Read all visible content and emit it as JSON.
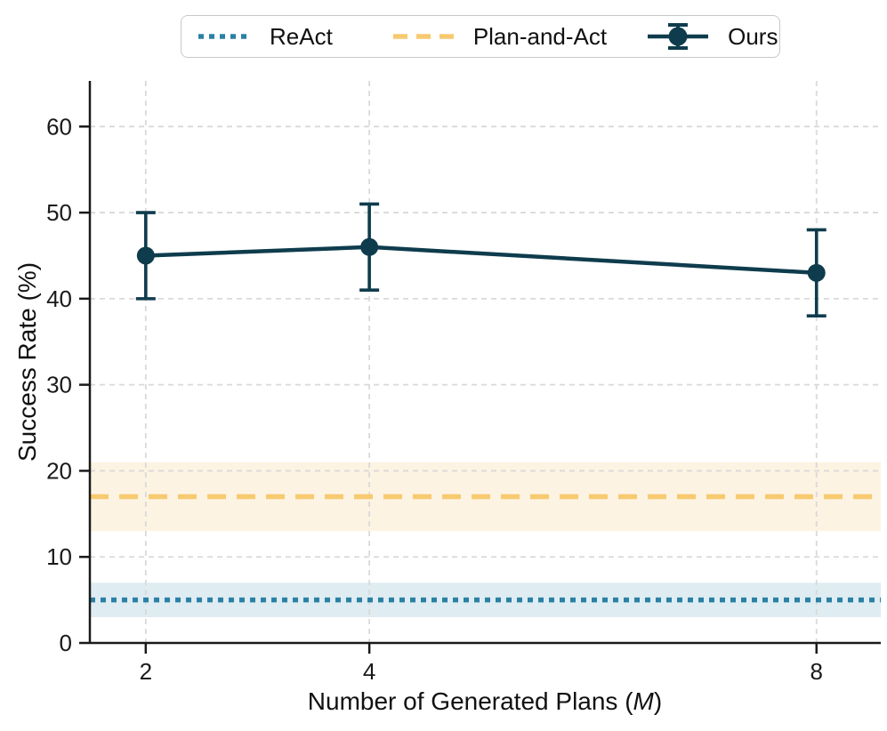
{
  "colors": {
    "ours": "#0f3c4d",
    "react": "#2a80a5",
    "react_band": "#dfecf2",
    "plan_and_act": "#f7ca70",
    "plan_and_act_band": "#fdf3e2",
    "grid": "#d9d9d9",
    "spine": "#1a1a1a",
    "legend_border": "#c8c8c8"
  },
  "legend": {
    "items": [
      {
        "label": "ReAct",
        "style": "dotted-line"
      },
      {
        "label": "Plan-and-Act",
        "style": "dashed-line"
      },
      {
        "label": "Ours",
        "style": "errorbar-marker"
      }
    ]
  },
  "axes": {
    "ylabel": "Success Rate (%)",
    "xlabel_prefix": "Number of Generated Plans (",
    "xlabel_italic": "M",
    "xlabel_suffix": ")"
  },
  "chart_data": {
    "type": "line",
    "title": "",
    "xlabel": "Number of Generated Plans (M)",
    "ylabel": "Success Rate (%)",
    "x": [
      2,
      4,
      8
    ],
    "xticks": [
      2,
      4,
      8
    ],
    "yticks": [
      0,
      10,
      20,
      30,
      40,
      50,
      60
    ],
    "xlim": [
      1.5,
      8.575
    ],
    "ylim": [
      0,
      65.3
    ],
    "grid": true,
    "legend_position": "top-center",
    "series": [
      {
        "name": "Ours",
        "type": "line_with_errorbars",
        "x": [
          2,
          4,
          8
        ],
        "values": [
          45,
          46,
          43
        ],
        "yerr": [
          5,
          5,
          5
        ]
      },
      {
        "name": "Plan-and-Act",
        "type": "hline_with_band",
        "value": 17,
        "band": [
          13,
          21
        ]
      },
      {
        "name": "ReAct",
        "type": "hline_with_band",
        "value": 5,
        "band": [
          3,
          7
        ]
      }
    ]
  }
}
